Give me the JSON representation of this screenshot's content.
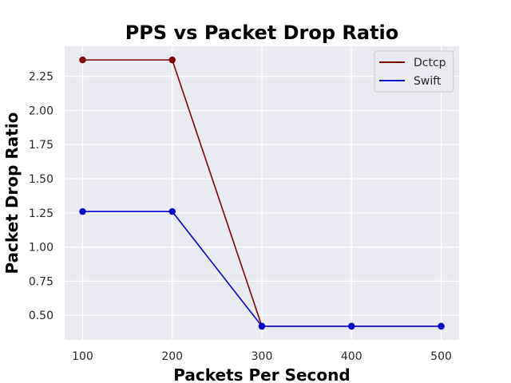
{
  "chart_data": {
    "type": "line",
    "title": "PPS vs Packet Drop Ratio",
    "xlabel": "Packets Per Second",
    "ylabel": "Packet Drop Ratio",
    "x": [
      100,
      200,
      300,
      400,
      500
    ],
    "x_ticks": [
      "100",
      "200",
      "300",
      "400",
      "500"
    ],
    "y_ticks": [
      "0.50",
      "0.75",
      "1.00",
      "1.25",
      "1.50",
      "1.75",
      "2.00",
      "2.25"
    ],
    "xlim": [
      80,
      520
    ],
    "ylim": [
      0.32,
      2.47
    ],
    "grid": true,
    "legend_position": "top-right",
    "series": [
      {
        "name": "Dctcp",
        "color": "#800000",
        "values": [
          2.37,
          2.37,
          0.42,
          0.42,
          0.42
        ]
      },
      {
        "name": "Swift",
        "color": "#0000cd",
        "values": [
          1.26,
          1.26,
          0.42,
          0.42,
          0.42
        ]
      }
    ]
  }
}
